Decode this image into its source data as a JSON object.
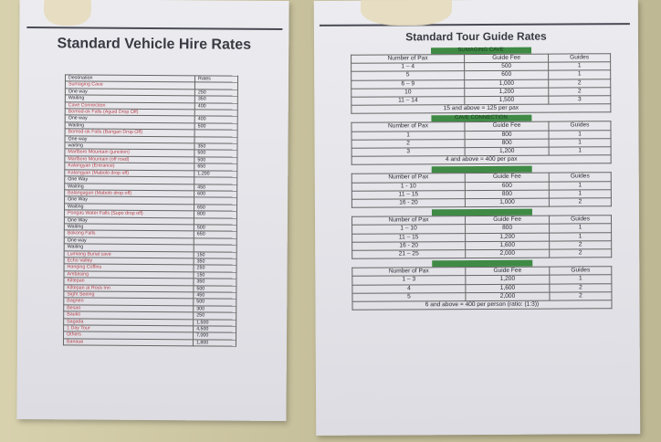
{
  "left": {
    "title": "Standard Vehicle Hire Rates",
    "header": [
      "Destination",
      "Rates"
    ],
    "rows": [
      [
        "Sumaging Cave"
      ],
      [
        "One way",
        "250"
      ],
      [
        "Waiting",
        "350"
      ],
      [
        "Cave Connection",
        "400"
      ],
      [
        "Bomod-ok Falls (Aguid Drop Off)"
      ],
      [
        "One way",
        "400"
      ],
      [
        "Waiting",
        "500"
      ],
      [
        "Bomod-ok Falls (Bangan Drop Off)"
      ],
      [
        "One way"
      ],
      [
        "waiting",
        "350"
      ],
      [
        "Marlboro Mountain (junction)",
        "500"
      ],
      [
        "Marlboro Mountain (off road)",
        "500"
      ],
      [
        "Kalangyan (Entrance)",
        "650"
      ],
      [
        "Kalangyan (Mabolo drop off)",
        "1,200"
      ],
      [
        "One Way"
      ],
      [
        "Waiting",
        "450"
      ],
      [
        "Balangagan (Mabolo drop off)",
        "600"
      ],
      [
        "One Way"
      ],
      [
        "Waiting",
        "650"
      ],
      [
        "Pongas Water Falls (Supo drop off)",
        "800"
      ],
      [
        "One Way"
      ],
      [
        "Waiting",
        "500"
      ],
      [
        "Bokong Falls",
        "650"
      ],
      [
        "One way"
      ],
      [
        "Waiting"
      ],
      [
        "Lumiang Burial cave",
        "150"
      ],
      [
        "Echo Valley",
        "350"
      ],
      [
        "Hanging Coffins",
        "250"
      ],
      [
        "Ambasing",
        "150"
      ],
      [
        "Kiltepan",
        "350"
      ],
      [
        "Kiltepan at Rock Inn",
        "500"
      ],
      [
        "Sight Seeing",
        "450"
      ],
      [
        "Bagnen",
        "500"
      ],
      [
        "Besao",
        "300"
      ],
      [
        "Bauko",
        "250"
      ],
      [
        "Sagada",
        "1,500"
      ],
      [
        "1 Day Tour",
        "4,500"
      ],
      [
        "Others",
        "7,000"
      ],
      [
        "Banaue",
        "1,800"
      ]
    ]
  },
  "right": {
    "title": "Standard Tour Guide Rates",
    "sections": [
      {
        "heading": "SUMAGING CAVE",
        "header": [
          "Number of Pax",
          "Guide Fee",
          "Guides"
        ],
        "rows": [
          [
            "1 – 4",
            "500",
            "1"
          ],
          [
            "5",
            "600",
            "1"
          ],
          [
            "6 – 9",
            "1,000",
            "2"
          ],
          [
            "10",
            "1,200",
            "2"
          ],
          [
            "11 – 14",
            "1,500",
            "3"
          ]
        ],
        "note": "15 and above = 125 per pax"
      },
      {
        "heading": "CAVE CONNECTION",
        "header": [
          "Number of Pax",
          "Guide Fee",
          "Guides"
        ],
        "rows": [
          [
            "1",
            "800",
            "1"
          ],
          [
            "2",
            "800",
            "1"
          ],
          [
            "3",
            "1,200",
            "1"
          ]
        ],
        "note": "4 and above = 400 per pax"
      },
      {
        "header": [
          "Number of Pax",
          "Guide Fee",
          "Guides"
        ],
        "rows": [
          [
            "1 - 10",
            "600",
            "1"
          ],
          [
            "11 – 15",
            "800",
            "1"
          ],
          [
            "16 - 20",
            "1,000",
            "2"
          ]
        ]
      },
      {
        "header": [
          "Number of Pax",
          "Guide Fee",
          "Guides"
        ],
        "rows": [
          [
            "1 – 10",
            "800",
            "1"
          ],
          [
            "11 – 15",
            "1,200",
            "1"
          ],
          [
            "16 - 20",
            "1,600",
            "2"
          ],
          [
            "21 – 25",
            "2,000",
            "2"
          ]
        ]
      },
      {
        "header": [
          "Number of Pax",
          "Guide Fee",
          "Guides"
        ],
        "rows": [
          [
            "1 – 3",
            "1,200",
            "1"
          ],
          [
            "4",
            "1,600",
            "2"
          ],
          [
            "5",
            "2,000",
            "2"
          ]
        ],
        "note": "6 and above = 400 per person (ratio: (1:3))"
      }
    ]
  }
}
